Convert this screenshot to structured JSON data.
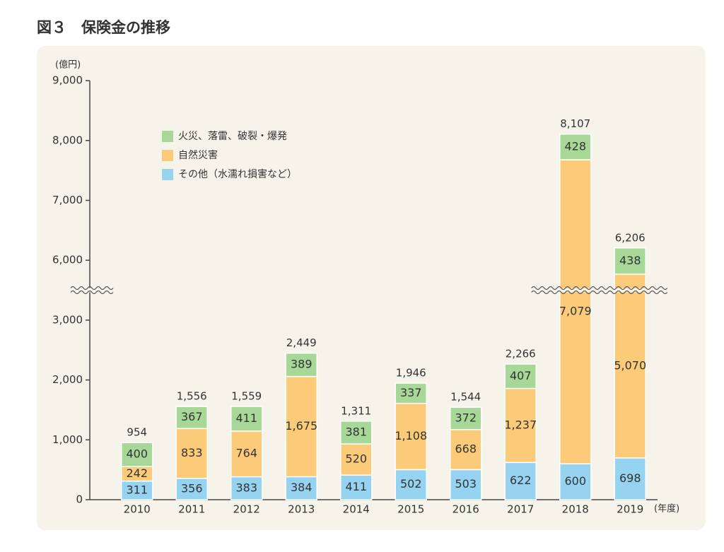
{
  "chart_data": {
    "type": "stacked-bar",
    "title": "図３　保険金の推移",
    "y_label": "(億円)",
    "x_label": "(年度)",
    "categories": [
      "2010",
      "2011",
      "2012",
      "2013",
      "2014",
      "2015",
      "2016",
      "2017",
      "2018",
      "2019"
    ],
    "series": [
      {
        "name": "その他（水濡れ損害など）",
        "color": "#96d3f0",
        "values": [
          311,
          356,
          383,
          384,
          411,
          502,
          503,
          622,
          600,
          698
        ],
        "value_labels": [
          "311",
          "356",
          "383",
          "384",
          "411",
          "502",
          "503",
          "622",
          "600",
          "698"
        ]
      },
      {
        "name": "自然災害",
        "color": "#fbcb79",
        "values": [
          242,
          833,
          764,
          1675,
          520,
          1108,
          668,
          1237,
          7079,
          5070
        ],
        "value_labels": [
          "242",
          "833",
          "764",
          "1,675",
          "520",
          "1,108",
          "668",
          "1,237",
          "7,079",
          "5,070"
        ]
      },
      {
        "name": "火災、落雷、破裂・爆発",
        "color": "#a7d897",
        "values": [
          400,
          367,
          411,
          389,
          381,
          337,
          372,
          407,
          428,
          438
        ],
        "value_labels": [
          "400",
          "367",
          "411",
          "389",
          "381",
          "337",
          "372",
          "407",
          "428",
          "438"
        ]
      }
    ],
    "totals": [
      954,
      1556,
      1559,
      2449,
      1311,
      1946,
      1544,
      2266,
      8107,
      6206
    ],
    "total_labels": [
      "954",
      "1,556",
      "1,559",
      "2,449",
      "1,311",
      "1,946",
      "1,544",
      "2,266",
      "8,107",
      "6,206"
    ],
    "ylim": [
      0,
      9000
    ],
    "y_break": [
      3500,
      5500
    ],
    "yticks": [
      0,
      {
        "value": 1000,
        "label": "1,000"
      },
      {
        "value": 2000,
        "label": "2,000"
      },
      {
        "value": 3000,
        "label": "3,000"
      },
      {
        "value": 6000,
        "label": "6,000"
      },
      {
        "value": 7000,
        "label": "7,000"
      },
      {
        "value": 8000,
        "label": "8,000"
      },
      {
        "value": 9000,
        "label": "9,000"
      }
    ],
    "legend": "upper-left"
  }
}
